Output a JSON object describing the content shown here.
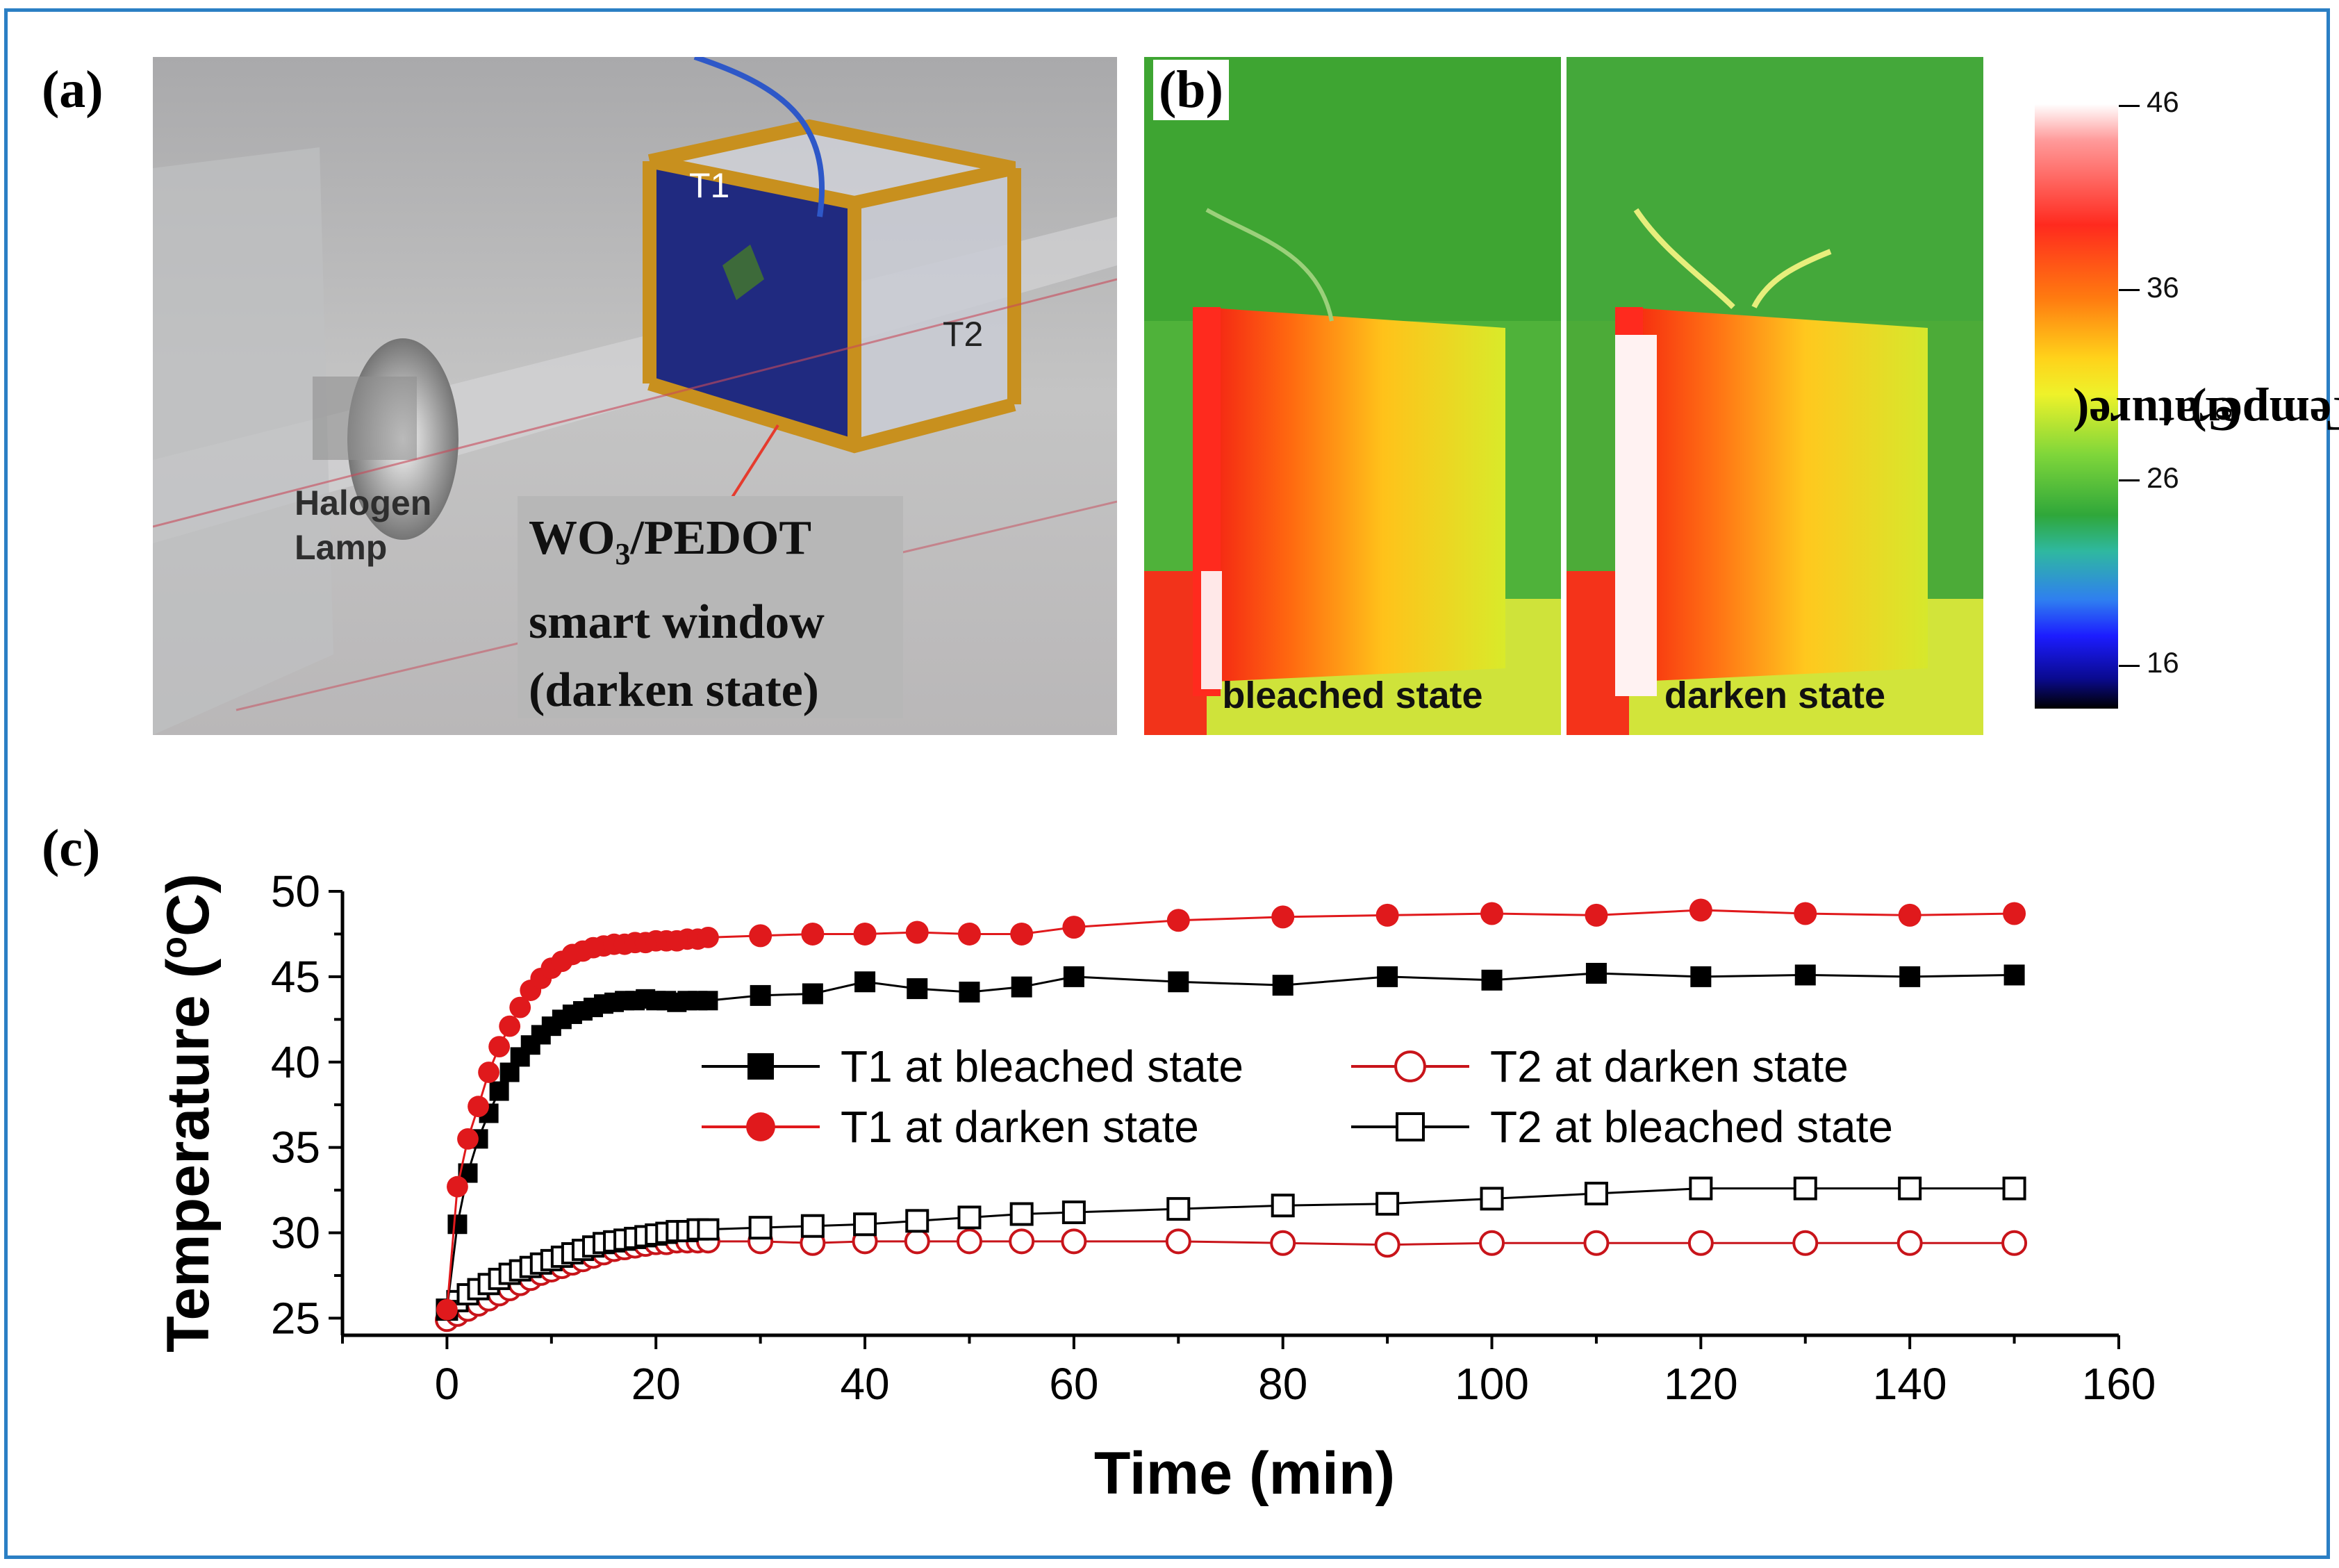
{
  "panels": {
    "a": {
      "label": "(a)",
      "t1": "T1",
      "t2": "T2",
      "lamp_line1": "Halogen",
      "lamp_line2": "Lamp",
      "window_line1_main": "WO",
      "window_line1_sub": "3",
      "window_line1_rest": "/PEDOT",
      "window_line2": "smart window",
      "window_line3": "(darken state)"
    },
    "b": {
      "label": "(b)",
      "left_caption": "bleached state",
      "right_caption": "darken state",
      "colorbar": {
        "ticks": [
          "46",
          "36",
          "26",
          "16"
        ],
        "title_main": "Temperature(",
        "title_sup": "o",
        "title_end": "C)"
      }
    },
    "c": {
      "label": "(c)"
    }
  },
  "colors": {
    "frame": "#2b7fc4",
    "t1_bleached": "#000000",
    "t1_darken": "#e0191c",
    "t2_darken": "#c8141a",
    "t2_bleached": "#000000"
  },
  "chart_data": {
    "type": "line",
    "xlabel": "Time (min)",
    "ylabel_main": "Temperature (",
    "ylabel_sup": "o",
    "ylabel_end": "C)",
    "xlim": [
      -10,
      160
    ],
    "ylim": [
      24,
      50
    ],
    "xticks": [
      0,
      20,
      40,
      60,
      80,
      100,
      120,
      140,
      160
    ],
    "yticks": [
      25,
      30,
      35,
      40,
      45,
      50
    ],
    "legend": "center-right",
    "series": [
      {
        "name": "T1 at bleached state",
        "marker": "square-filled",
        "x": [
          0,
          1,
          2,
          3,
          4,
          5,
          6,
          7,
          8,
          9,
          10,
          11,
          12,
          13,
          14,
          15,
          16,
          17,
          18,
          19,
          20,
          21,
          22,
          23,
          24,
          25,
          30,
          35,
          40,
          45,
          50,
          55,
          60,
          70,
          80,
          90,
          100,
          110,
          120,
          130,
          140,
          150
        ],
        "y": [
          25.5,
          30.5,
          33.5,
          35.5,
          37.0,
          38.3,
          39.4,
          40.3,
          41.0,
          41.6,
          42.1,
          42.5,
          42.8,
          43.0,
          43.2,
          43.4,
          43.5,
          43.6,
          43.6,
          43.7,
          43.6,
          43.6,
          43.5,
          43.6,
          43.6,
          43.6,
          43.9,
          44.0,
          44.7,
          44.3,
          44.1,
          44.4,
          45.0,
          44.7,
          44.5,
          45.0,
          44.8,
          45.2,
          45.0,
          45.1,
          45.0,
          45.1
        ]
      },
      {
        "name": "T1 at darken state",
        "marker": "circle-filled",
        "x": [
          0,
          1,
          2,
          3,
          4,
          5,
          6,
          7,
          8,
          9,
          10,
          11,
          12,
          13,
          14,
          15,
          16,
          17,
          18,
          19,
          20,
          21,
          22,
          23,
          24,
          25,
          30,
          35,
          40,
          45,
          50,
          55,
          60,
          70,
          80,
          90,
          100,
          110,
          120,
          130,
          140,
          150
        ],
        "y": [
          25.5,
          32.7,
          35.5,
          37.4,
          39.4,
          40.9,
          42.1,
          43.2,
          44.2,
          44.9,
          45.5,
          45.9,
          46.3,
          46.5,
          46.7,
          46.8,
          46.9,
          46.9,
          47.0,
          47.0,
          47.1,
          47.1,
          47.1,
          47.2,
          47.2,
          47.3,
          47.4,
          47.5,
          47.5,
          47.6,
          47.5,
          47.5,
          47.9,
          48.3,
          48.5,
          48.6,
          48.7,
          48.6,
          48.9,
          48.7,
          48.6,
          48.7
        ]
      },
      {
        "name": "T2 at darken state",
        "marker": "circle-open",
        "x": [
          0,
          1,
          2,
          3,
          4,
          5,
          6,
          7,
          8,
          9,
          10,
          11,
          12,
          13,
          14,
          15,
          16,
          17,
          18,
          19,
          20,
          21,
          22,
          23,
          24,
          25,
          30,
          35,
          40,
          45,
          50,
          55,
          60,
          70,
          80,
          90,
          100,
          110,
          120,
          130,
          140,
          150
        ],
        "y": [
          24.9,
          25.2,
          25.5,
          25.8,
          26.1,
          26.4,
          26.7,
          27.0,
          27.3,
          27.6,
          27.8,
          28.0,
          28.2,
          28.4,
          28.6,
          28.8,
          29.0,
          29.1,
          29.2,
          29.3,
          29.4,
          29.4,
          29.5,
          29.5,
          29.5,
          29.5,
          29.5,
          29.4,
          29.5,
          29.5,
          29.5,
          29.5,
          29.5,
          29.5,
          29.4,
          29.3,
          29.4,
          29.4,
          29.4,
          29.4,
          29.4,
          29.4
        ]
      },
      {
        "name": "T2 at bleached state",
        "marker": "square-open",
        "x": [
          0,
          1,
          2,
          3,
          4,
          5,
          6,
          7,
          8,
          9,
          10,
          11,
          12,
          13,
          14,
          15,
          16,
          17,
          18,
          19,
          20,
          21,
          22,
          23,
          24,
          25,
          30,
          35,
          40,
          45,
          50,
          55,
          60,
          70,
          80,
          90,
          100,
          110,
          120,
          130,
          140,
          150
        ],
        "y": [
          25.5,
          26.0,
          26.4,
          26.7,
          27.0,
          27.3,
          27.6,
          27.8,
          28.0,
          28.2,
          28.4,
          28.6,
          28.8,
          29.0,
          29.2,
          29.4,
          29.5,
          29.6,
          29.7,
          29.8,
          29.9,
          30.0,
          30.1,
          30.1,
          30.2,
          30.2,
          30.3,
          30.4,
          30.5,
          30.7,
          30.9,
          31.1,
          31.2,
          31.4,
          31.6,
          31.7,
          32.0,
          32.3,
          32.6,
          32.6,
          32.6,
          32.6
        ]
      }
    ]
  }
}
